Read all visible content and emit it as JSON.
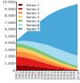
{
  "chart_data": {
    "type": "area",
    "stacked": true,
    "grid": false,
    "legend": "upper left",
    "categories": [
      "1991",
      "1992",
      "1993",
      "1994",
      "1995",
      "1996",
      "1997",
      "1998",
      "1999",
      "2000",
      "2001",
      "2002",
      "2003",
      "2004",
      "2005",
      "2006",
      "2007",
      "2008",
      "2009",
      "2010"
    ],
    "ylim": [
      0,
      10000
    ],
    "yticks": [
      0,
      1000,
      2000,
      3000,
      4000,
      5000,
      6000,
      7000,
      8000,
      9000,
      10000
    ],
    "series": [
      {
        "name": "Series 1",
        "color": "#8b0000",
        "values": [
          800,
          780,
          750,
          700,
          650,
          600,
          540,
          480,
          420,
          360,
          300,
          250,
          200,
          160,
          120,
          90,
          60,
          40,
          20,
          10
        ]
      },
      {
        "name": "Series 2",
        "color": "#e31a1c",
        "values": [
          1200,
          1180,
          1150,
          1100,
          1040,
          970,
          900,
          820,
          740,
          660,
          580,
          500,
          420,
          350,
          280,
          220,
          160,
          110,
          70,
          40
        ]
      },
      {
        "name": "Series 3",
        "color": "#fd8d3c",
        "values": [
          800,
          790,
          780,
          760,
          740,
          710,
          680,
          640,
          600,
          560,
          520,
          470,
          420,
          370,
          320,
          270,
          220,
          180,
          140,
          100
        ]
      },
      {
        "name": "Series 4",
        "color": "#fecc5c",
        "values": [
          600,
          600,
          590,
          580,
          570,
          560,
          540,
          520,
          500,
          480,
          460,
          430,
          400,
          370,
          340,
          310,
          280,
          250,
          220,
          200
        ]
      },
      {
        "name": "Series 5",
        "color": "#78c679",
        "values": [
          500,
          510,
          520,
          520,
          520,
          510,
          500,
          490,
          480,
          470,
          460,
          440,
          420,
          400,
          380,
          360,
          340,
          320,
          310,
          300
        ]
      },
      {
        "name": "Series 6",
        "color": "#a6dcef",
        "values": [
          300,
          400,
          500,
          600,
          700,
          800,
          900,
          1000,
          1100,
          1200,
          1300,
          1350,
          1400,
          1450,
          1480,
          1500,
          1500,
          1500,
          1500,
          1500
        ]
      },
      {
        "name": "Series 7",
        "color": "#4aa8d8",
        "values": [
          200,
          500,
          900,
          1300,
          1750,
          2200,
          2650,
          3100,
          3550,
          4000,
          4450,
          4900,
          5300,
          5700,
          6050,
          6400,
          6750,
          7050,
          7300,
          7600
        ]
      }
    ]
  }
}
